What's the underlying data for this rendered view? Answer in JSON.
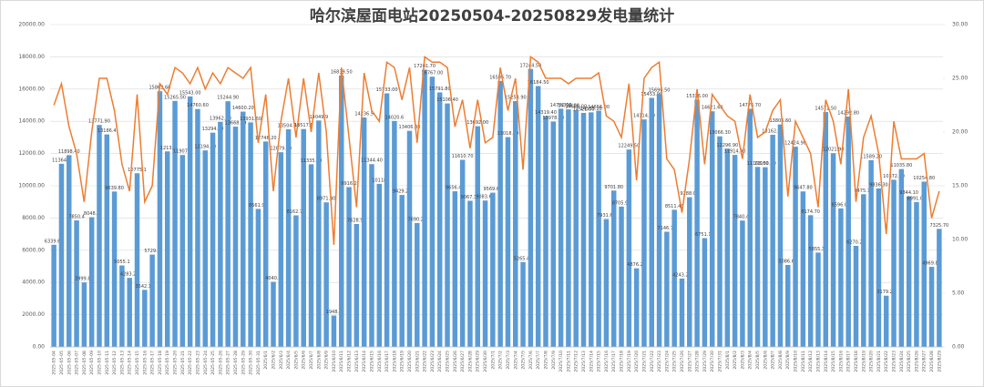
{
  "chart_data": {
    "type": "bar_line",
    "title": "哈尔滨屋面电站20250504-20250829发电量统计",
    "categories": [
      "2025-05-04",
      "2025-05-05",
      "2025-05-06",
      "2025-05-07",
      "2025-05-08",
      "2025-05-09",
      "2025-05-10",
      "2025-05-11",
      "2025-05-12",
      "2025-05-13",
      "2025-05-14",
      "2025-05-15",
      "2025-05-16",
      "2025-05-17",
      "2025-05-18",
      "2025-05-19",
      "2025-05-20",
      "2025-05-21",
      "2025-05-22",
      "2025-05-23",
      "2025-05-24",
      "2025-05-25",
      "2025-05-26",
      "2025-05-27",
      "2025-05-28",
      "2025-05-29",
      "2025-05-30",
      "2025-05-31",
      "2025/6/1",
      "2025/6/2",
      "2025/6/3",
      "2025/6/4",
      "2025/6/5",
      "2025/6/6",
      "2025/6/7",
      "2025/6/8",
      "2025/6/9",
      "2025/6/10",
      "2025/6/11",
      "2025/6/12",
      "2025/6/13",
      "2025/6/14",
      "2025/6/15",
      "2025/6/16",
      "2025/6/17",
      "2025/6/18",
      "2025/6/19",
      "2025/6/20",
      "2025/6/21",
      "2025/6/22",
      "2025/6/23",
      "2025/6/24",
      "2025/6/25",
      "2025/6/26",
      "2025/6/27",
      "2025/6/28",
      "2025/6/29",
      "2025/6/30",
      "2025/7/1",
      "2025/7/2",
      "2025/7/3",
      "2025/7/4",
      "2025/7/5",
      "2025/7/6",
      "2025/7/7",
      "2025/7/8",
      "2025/7/9",
      "2025/7/10",
      "2025/7/11",
      "2025/7/12",
      "2025/7/13",
      "2025/7/14",
      "2025/7/15",
      "2025/7/16",
      "2025/7/17",
      "2025/7/18",
      "2025/7/19",
      "2025/7/20",
      "2025/7/21",
      "2025/7/22",
      "2025/7/23",
      "2025/7/24",
      "2025/7/25",
      "2025/7/26",
      "2025/7/27",
      "2025/7/28",
      "2025/7/29",
      "2025/7/30",
      "2025/7/31",
      "2025/8/1",
      "2025/8/2",
      "2025/8/3",
      "2025/8/4",
      "2025/8/5",
      "2025/8/6",
      "2025/8/7",
      "2025/8/8",
      "2025/8/9",
      "2025/8/10",
      "2025/8/11",
      "2025/8/12",
      "2025/8/13",
      "2025/8/14",
      "2025/8/15",
      "2025/8/16",
      "2025/8/17",
      "2025/8/18",
      "2025/8/19",
      "2025/8/20",
      "2025/8/21",
      "2025/8/22",
      "2025/8/23",
      "2025/8/24",
      "2025/8/25",
      "2025/8/26",
      "2025/8/27",
      "2025/8/28",
      "2025/8/29"
    ],
    "series": [
      {
        "name": "bar",
        "color": "#5b9bd5",
        "values": [
          6339.6,
          11364.4,
          11898.4,
          7850.4,
          3999.8,
          8048.4,
          13771.9,
          13186.4,
          9639.8,
          5055.1,
          4283.2,
          10775.1,
          3542.1,
          5729.5,
          15863.6,
          12132,
          15265,
          11907.2,
          15543,
          14760.6,
          12194.5,
          13294,
          13962.6,
          15244.9,
          13668.1,
          14600.2,
          13931.6,
          8561.9,
          12746.2,
          4040.4,
          12079.1,
          13504.3,
          8162.7,
          13517.6,
          11335.3,
          14049.9,
          8971.4,
          1948.2,
          16839.5,
          9916.2,
          7628.9,
          14236.5,
          11344.4,
          10118,
          15733,
          14020.6,
          9429.2,
          13406.3,
          7690.2,
          17201.7,
          16767,
          15791.8,
          15106.4,
          9656.4,
          11610.7,
          9067.3,
          13692,
          9083.6,
          9569.6,
          16506.7,
          13018.2,
          15253.9,
          5265.4,
          17244.5,
          16184.5,
          14319.4,
          13978.5,
          14780.9,
          14738,
          14686,
          14521,
          14555.1,
          14656,
          7931.6,
          9701.8,
          8705.9,
          12249.5,
          4876.2,
          14114.9,
          15453.9,
          15696.5,
          7146.7,
          8511.4,
          4243.2,
          9288,
          15336,
          6751.1,
          14621.6,
          13066.3,
          12296.9,
          11914.9,
          7840.4,
          14776.7,
          11168,
          11150.1,
          13162.8,
          13806.6,
          5086.6,
          12424.9,
          9647.8,
          8174.7,
          5855.3,
          14571.5,
          12021.9,
          8596,
          14292.8,
          6270.2,
          9475.7,
          11589.2,
          9836.3,
          3179.2,
          10372.6,
          11035.8,
          9344.1,
          8991,
          10254.8,
          4969.8,
          7325.7
        ],
        "value_labels": [
          "6339.60",
          "11364.4",
          "11898.40",
          "7850.4",
          "3999.80",
          "8048.4",
          "13771.90",
          "13186.4",
          "9639.80",
          "5055.1",
          "4283.20",
          "10775.1",
          "3542.10",
          "5729.5",
          "15863.60",
          "12132",
          "15265.00",
          "11907.2",
          "15543.00",
          "14760.60",
          "12194.50",
          "13294.00",
          "13962.60",
          "15244.90",
          "13668.10",
          "14600.20",
          "13931.60",
          "8561.90",
          "12746.20",
          "4040.4",
          "12079.10",
          "13504.30",
          "8162.70",
          "13517.6",
          "11335.30",
          "14049.9",
          "8971.40",
          "1948.2",
          "16839.50",
          "9916.2",
          "7628.90",
          "14236.5",
          "11344.40",
          "10118",
          "15733.00",
          "14020.6",
          "9429.20",
          "13406.30",
          "7690.20",
          "17201.70",
          "16767.00",
          "15791.80",
          "15106.40",
          "9656.40",
          "11610.70",
          "9067.30",
          "13692.00",
          "9083.60",
          "9569.60",
          "16506.70",
          "13018.20",
          "15253.90",
          "5265.40",
          "17244.50",
          "16184.50",
          "14319.40",
          "13978.50",
          "14780.90",
          "14738.00",
          "14686.00",
          "14521.00",
          "14555.10",
          "14656.00",
          "7931.60",
          "9701.80",
          "8705.90",
          "12249.50",
          "4876.20",
          "14114.90",
          "15453.90",
          "15696.50",
          "7146.70",
          "8511.40",
          "4243.20",
          "9288.00",
          "15336.00",
          "6751.10",
          "14621.60",
          "13066.30",
          "12296.90",
          "11914.90",
          "7840.40",
          "14776.70",
          "11168.00",
          "11150.10",
          "13162.80",
          "13806.60",
          "5086.60",
          "12424.90",
          "9647.80",
          "8174.70",
          "5855.30",
          "14571.50",
          "12021.90",
          "8596.00",
          "14292.80",
          "6270.20",
          "9475.70",
          "11589.20",
          "9836.30",
          "3179.20",
          "10372.60",
          "11035.80",
          "9344.10",
          "8991.00",
          "10254.80",
          "4969.80",
          "7325.70"
        ]
      },
      {
        "name": "line",
        "color": "#ed7d31",
        "axis": "y2",
        "values": [
          22.5,
          24.5,
          20.5,
          18,
          13.5,
          20,
          25,
          25,
          22,
          17,
          14.5,
          23.5,
          13.5,
          15,
          24.5,
          23.5,
          26,
          25.5,
          24.5,
          26,
          24,
          25.5,
          24.5,
          26,
          25.5,
          25,
          26,
          19,
          23.5,
          14.5,
          21,
          25,
          19.5,
          25,
          20,
          25.5,
          20,
          9.5,
          26,
          19.5,
          13,
          25.5,
          22,
          21,
          26.5,
          26,
          23,
          26,
          19,
          27,
          26.5,
          26.5,
          26,
          20.5,
          23,
          18.5,
          23,
          19,
          19.5,
          26,
          22,
          25,
          16.5,
          27,
          26.5,
          25,
          25,
          25,
          24.5,
          25,
          25,
          25,
          25.5,
          21.5,
          21,
          19.5,
          24.5,
          15.5,
          25,
          26,
          26.5,
          17.5,
          16.5,
          12.5,
          17.5,
          24,
          17,
          23.5,
          22.5,
          21.5,
          21,
          17.5,
          23.5,
          19.5,
          20,
          22,
          23,
          14,
          21,
          19.5,
          18,
          13,
          23,
          21,
          17,
          24,
          13.5,
          19.5,
          21.5,
          18,
          10.5,
          21,
          17.5,
          17.5,
          17.5,
          18,
          12,
          14.5
        ]
      }
    ],
    "ylim": [
      0,
      20000
    ],
    "yticks": [
      {
        "value": 0,
        "label": "0.00"
      },
      {
        "value": 2000,
        "label": "2000.00"
      },
      {
        "value": 4000,
        "label": "4000.00"
      },
      {
        "value": 6000,
        "label": "6000.00"
      },
      {
        "value": 8000,
        "label": "8000.00"
      },
      {
        "value": 10000,
        "label": "10000.00"
      },
      {
        "value": 12000,
        "label": "12000.00"
      },
      {
        "value": 14000,
        "label": "14000.00"
      },
      {
        "value": 16000,
        "label": "16000.00"
      },
      {
        "value": 18000,
        "label": "18000.00"
      },
      {
        "value": 20000,
        "label": "20000.00"
      }
    ],
    "y2lim": [
      0,
      30
    ],
    "y2ticks": [
      {
        "value": 0,
        "label": "0.00"
      },
      {
        "value": 5,
        "label": "5.00"
      },
      {
        "value": 10,
        "label": "10.00"
      },
      {
        "value": 15,
        "label": "15.00"
      },
      {
        "value": 20,
        "label": "20.00"
      },
      {
        "value": 25,
        "label": "25.00"
      },
      {
        "value": 30,
        "label": "30.00"
      }
    ],
    "grid": true
  }
}
